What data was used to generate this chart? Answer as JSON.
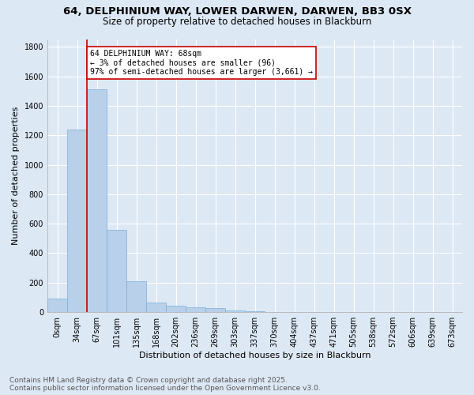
{
  "title_line1": "64, DELPHINIUM WAY, LOWER DARWEN, DARWEN, BB3 0SX",
  "title_line2": "Size of property relative to detached houses in Blackburn",
  "xlabel": "Distribution of detached houses by size in Blackburn",
  "ylabel": "Number of detached properties",
  "bar_color": "#b8d0ea",
  "bar_edge_color": "#7aafd4",
  "background_color": "#dde8f5",
  "grid_color": "#ffffff",
  "annotation_text": "64 DELPHINIUM WAY: 68sqm\n← 3% of detached houses are smaller (96)\n97% of semi-detached houses are larger (3,661) →",
  "annotation_box_color": "#ffffff",
  "annotation_border_color": "#cc0000",
  "vline_color": "#cc0000",
  "categories": [
    "0sqm",
    "34sqm",
    "67sqm",
    "101sqm",
    "135sqm",
    "168sqm",
    "202sqm",
    "236sqm",
    "269sqm",
    "303sqm",
    "337sqm",
    "370sqm",
    "404sqm",
    "437sqm",
    "471sqm",
    "505sqm",
    "538sqm",
    "572sqm",
    "606sqm",
    "639sqm",
    "673sqm"
  ],
  "values": [
    90,
    1240,
    1510,
    560,
    210,
    65,
    45,
    35,
    28,
    12,
    5,
    2,
    1,
    0,
    0,
    0,
    0,
    0,
    0,
    0,
    0
  ],
  "ylim": [
    0,
    1850
  ],
  "yticks": [
    0,
    200,
    400,
    600,
    800,
    1000,
    1200,
    1400,
    1600,
    1800
  ],
  "footer_line1": "Contains HM Land Registry data © Crown copyright and database right 2025.",
  "footer_line2": "Contains public sector information licensed under the Open Government Licence v3.0.",
  "title_fontsize": 9.5,
  "subtitle_fontsize": 8.5,
  "tick_fontsize": 7,
  "label_fontsize": 8,
  "annotation_fontsize": 7,
  "footer_fontsize": 6.5,
  "vline_position": 1.5
}
